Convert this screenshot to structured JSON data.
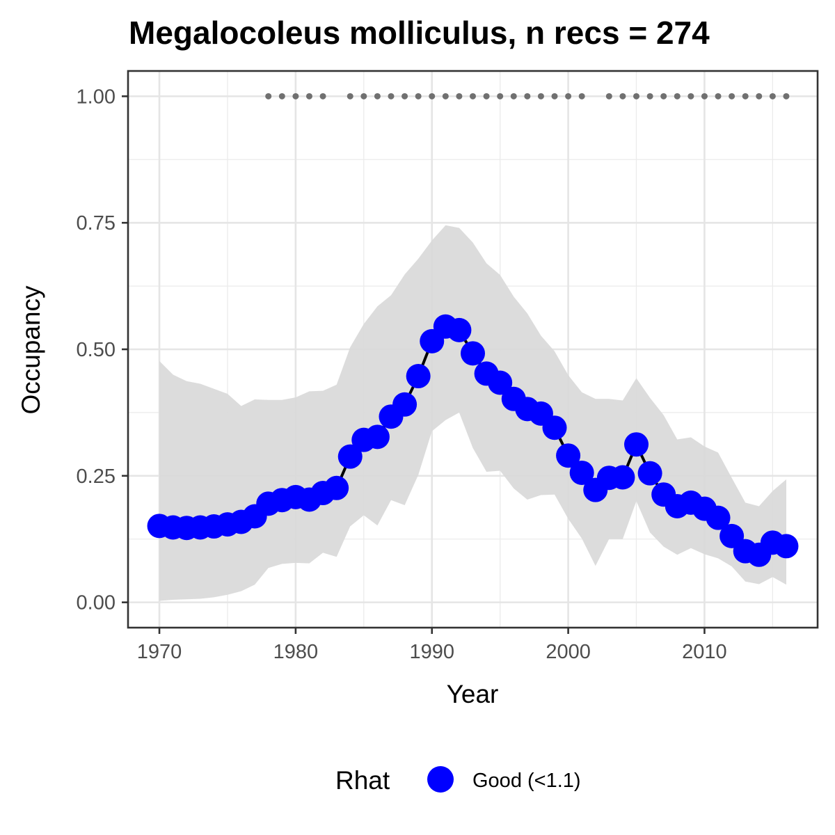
{
  "chart_data": {
    "type": "line",
    "title": "Megalocoleus molliculus, n recs = 274",
    "xlabel": "Year",
    "ylabel": "Occupancy",
    "xlim": [
      1967.7,
      2018.3
    ],
    "ylim": [
      -0.05,
      1.05
    ],
    "x_ticks": [
      1970,
      1980,
      1990,
      2000,
      2010
    ],
    "x_tick_labels": [
      "1970",
      "1980",
      "1990",
      "2000",
      "2010"
    ],
    "y_ticks": [
      0,
      0.25,
      0.5,
      0.75,
      1
    ],
    "y_tick_labels": [
      "0.00",
      "0.25",
      "0.50",
      "0.75",
      "1.00"
    ],
    "grid": true,
    "legend": {
      "title": "Rhat",
      "placement": "bottom",
      "entries": [
        {
          "label": "Good (<1.1)",
          "color": "#0000ff"
        }
      ]
    },
    "colors": {
      "points": "#0000ff",
      "line": "#000000",
      "ribbon": "#d9d9d9",
      "records": "#707070"
    },
    "x": [
      1970,
      1971,
      1972,
      1973,
      1974,
      1975,
      1976,
      1977,
      1978,
      1979,
      1980,
      1981,
      1982,
      1983,
      1984,
      1985,
      1986,
      1987,
      1988,
      1989,
      1990,
      1991,
      1992,
      1993,
      1994,
      1995,
      1996,
      1997,
      1998,
      1999,
      2000,
      2001,
      2002,
      2003,
      2004,
      2005,
      2006,
      2007,
      2008,
      2009,
      2010,
      2011,
      2012,
      2013,
      2014,
      2015,
      2016
    ],
    "series": [
      {
        "values": [
          0.151,
          0.148,
          0.147,
          0.148,
          0.15,
          0.154,
          0.159,
          0.17,
          0.195,
          0.202,
          0.208,
          0.203,
          0.216,
          0.226,
          0.288,
          0.321,
          0.327,
          0.367,
          0.391,
          0.447,
          0.516,
          0.545,
          0.538,
          0.492,
          0.452,
          0.434,
          0.402,
          0.382,
          0.373,
          0.345,
          0.29,
          0.256,
          0.222,
          0.246,
          0.247,
          0.312,
          0.255,
          0.213,
          0.19,
          0.197,
          0.185,
          0.167,
          0.131,
          0.101,
          0.094,
          0.118,
          0.111
        ]
      }
    ],
    "ribbon_lower": [
      0.003,
      0.005,
      0.006,
      0.007,
      0.01,
      0.015,
      0.022,
      0.035,
      0.068,
      0.076,
      0.078,
      0.077,
      0.098,
      0.09,
      0.15,
      0.172,
      0.152,
      0.202,
      0.192,
      0.252,
      0.338,
      0.36,
      0.375,
      0.305,
      0.258,
      0.26,
      0.225,
      0.203,
      0.212,
      0.213,
      0.165,
      0.126,
      0.072,
      0.125,
      0.125,
      0.2,
      0.138,
      0.11,
      0.094,
      0.107,
      0.095,
      0.087,
      0.071,
      0.041,
      0.036,
      0.05,
      0.035
    ],
    "ribbon_upper": [
      0.477,
      0.45,
      0.437,
      0.432,
      0.422,
      0.412,
      0.388,
      0.401,
      0.4,
      0.4,
      0.405,
      0.417,
      0.418,
      0.43,
      0.504,
      0.55,
      0.585,
      0.607,
      0.648,
      0.679,
      0.715,
      0.745,
      0.74,
      0.711,
      0.67,
      0.647,
      0.604,
      0.571,
      0.527,
      0.496,
      0.449,
      0.415,
      0.402,
      0.402,
      0.399,
      0.443,
      0.404,
      0.37,
      0.322,
      0.326,
      0.308,
      0.296,
      0.246,
      0.197,
      0.19,
      0.22,
      0.243
    ],
    "record_years": [
      1978,
      1979,
      1980,
      1981,
      1982,
      1984,
      1985,
      1986,
      1987,
      1988,
      1989,
      1990,
      1991,
      1992,
      1993,
      1994,
      1995,
      1996,
      1997,
      1998,
      1999,
      2000,
      2001,
      2003,
      2004,
      2005,
      2006,
      2007,
      2008,
      2009,
      2010,
      2011,
      2012,
      2013,
      2014,
      2015,
      2016
    ],
    "record_y": 1.0
  }
}
